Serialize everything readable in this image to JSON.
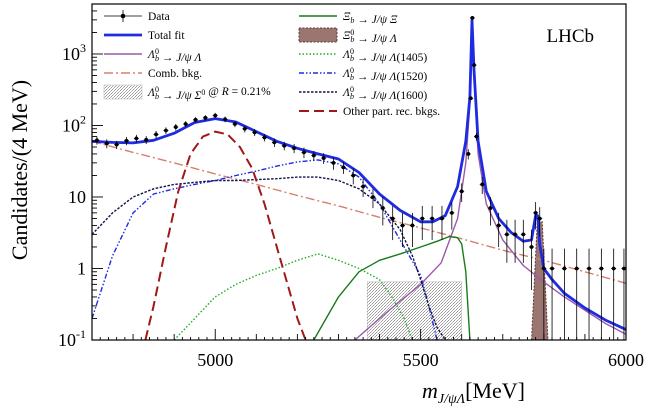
{
  "chart_data": {
    "type": "line",
    "experiment_label": "LHCb",
    "xlabel": "m_{J/ψΛ}[MeV]",
    "ylabel": "Candidates/(4 MeV)",
    "xlim": [
      4700,
      6000
    ],
    "ylim": [
      0.1,
      5000
    ],
    "yscale": "log",
    "grid": false,
    "legend_position": "top",
    "x_ticks": [
      5000,
      5500,
      6000
    ],
    "x_tick_labels": [
      "5000",
      "5500",
      "6000"
    ],
    "y_ticks": [
      0.1,
      1,
      10,
      100,
      1000
    ],
    "y_tick_labels": [
      "10^{-1}",
      "1",
      "10",
      "10^{2}",
      "10^{3}"
    ],
    "legend": [
      {
        "label": "Data",
        "style": "data",
        "color": "#000000"
      },
      {
        "label": "Total fit",
        "style": "solid",
        "color": "#1f2be0"
      },
      {
        "label": "Λb0 → J/ψ Λ",
        "style": "solid",
        "color": "#9a5aa8"
      },
      {
        "label": "Comb. bkg.",
        "style": "dashdot",
        "color": "#d4826c"
      },
      {
        "label": "Λb0 → J/ψ Σ0 @ R = 0.21%",
        "style": "hatch",
        "color": "#a8a8a8"
      },
      {
        "label": "Ξb → J/ψ Ξ",
        "style": "solid",
        "color": "#1a7a1a"
      },
      {
        "label": "Ξb0 → J/ψ Λ",
        "style": "fill",
        "color": "#9b7570"
      },
      {
        "label": "Λb0 → J/ψ Λ(1405)",
        "style": "dotted",
        "color": "#22aa22"
      },
      {
        "label": "Λb0 → J/ψ Λ(1520)",
        "style": "dashdotdot",
        "color": "#1f2be0"
      },
      {
        "label": "Λb0 → J/ψ Λ(1600)",
        "style": "dotdense",
        "color": "#10104a"
      },
      {
        "label": "Other part. rec. bkgs.",
        "style": "dashed",
        "color": "#a01818"
      }
    ],
    "series": [
      {
        "name": "Total fit",
        "color": "#1f2be0",
        "x": [
          4700,
          4750,
          4800,
          4850,
          4900,
          4950,
          5000,
          5050,
          5100,
          5150,
          5200,
          5250,
          5300,
          5350,
          5400,
          5450,
          5500,
          5530,
          5560,
          5590,
          5610,
          5620,
          5625,
          5630,
          5640,
          5660,
          5690,
          5720,
          5750,
          5770,
          5780,
          5785,
          5790,
          5800,
          5820,
          5850,
          5900,
          5950,
          6000
        ],
        "y": [
          60,
          58,
          57,
          62,
          78,
          110,
          125,
          112,
          82,
          60,
          48,
          40,
          34,
          22,
          11,
          6.5,
          4.5,
          4.5,
          5.5,
          14,
          60,
          250,
          3000,
          600,
          60,
          12,
          5,
          3.2,
          2.4,
          2.5,
          5.5,
          5.5,
          2.2,
          1.0,
          0.7,
          0.45,
          0.28,
          0.19,
          0.14
        ]
      },
      {
        "name": "Λb0 → J/ψ Λ",
        "color": "#9a5aa8",
        "x": [
          5340,
          5400,
          5450,
          5500,
          5550,
          5590,
          5610,
          5620,
          5625,
          5630,
          5640,
          5660,
          5700,
          5750,
          5800,
          5850,
          5900,
          5950,
          6000
        ],
        "y": [
          0.1,
          0.2,
          0.35,
          0.6,
          1.2,
          5,
          30,
          200,
          3000,
          500,
          40,
          8,
          2.5,
          1.1,
          0.65,
          0.4,
          0.26,
          0.17,
          0.12
        ]
      },
      {
        "name": "Comb. bkg.",
        "color": "#d4826c",
        "x": [
          4700,
          4800,
          4900,
          5000,
          5100,
          5200,
          5300,
          5400,
          5500,
          5600,
          5700,
          5800,
          5900,
          6000
        ],
        "y": [
          60,
          42,
          30,
          21,
          15,
          10.5,
          7.5,
          5.2,
          3.7,
          2.6,
          1.8,
          1.3,
          0.9,
          0.62
        ]
      },
      {
        "name": "Ξb → J/ψ Ξ",
        "color": "#1a7a1a",
        "x": [
          5240,
          5300,
          5350,
          5400,
          5450,
          5500,
          5540,
          5570,
          5590,
          5600,
          5610,
          5620
        ],
        "y": [
          0.1,
          0.4,
          0.9,
          1.3,
          1.6,
          2.0,
          2.4,
          2.8,
          2.7,
          2.2,
          0.9,
          0.1
        ]
      },
      {
        "name": "Λb0 → J/ψ Λ(1405)",
        "color": "#22aa22",
        "x": [
          4900,
          4950,
          5000,
          5050,
          5100,
          5150,
          5200,
          5250,
          5300,
          5350,
          5400,
          5430,
          5460,
          5480
        ],
        "y": [
          0.1,
          0.2,
          0.4,
          0.6,
          0.8,
          1.0,
          1.3,
          1.6,
          1.3,
          1.0,
          0.7,
          0.4,
          0.2,
          0.1
        ]
      },
      {
        "name": "Λb0 → J/ψ Λ(1520)",
        "color": "#1f2be0",
        "x": [
          4700,
          4750,
          4800,
          4850,
          4900,
          4950,
          5000,
          5050,
          5100,
          5150,
          5200,
          5250,
          5300,
          5350,
          5400,
          5450,
          5500,
          5520,
          5540
        ],
        "y": [
          0.2,
          1.5,
          6,
          11,
          13,
          15,
          17,
          20,
          23,
          27,
          31,
          33,
          29,
          19,
          8,
          2.5,
          0.8,
          0.3,
          0.1
        ]
      },
      {
        "name": "Λb0 → J/ψ Λ(1600)",
        "color": "#10104a",
        "x": [
          4700,
          4750,
          4800,
          4850,
          4900,
          4950,
          5000,
          5050,
          5100,
          5150,
          5200,
          5250,
          5300,
          5350,
          5400,
          5450,
          5480,
          5500,
          5520,
          5540,
          5560
        ],
        "y": [
          3,
          6,
          10,
          13,
          15,
          16,
          17,
          17,
          17.5,
          18,
          19,
          19,
          17,
          13,
          8,
          3.5,
          1.5,
          0.7,
          0.3,
          0.15,
          0.1
        ]
      },
      {
        "name": "Other part. rec. bkgs.",
        "color": "#a01818",
        "x": [
          4830,
          4850,
          4880,
          4910,
          4940,
          4970,
          5000,
          5030,
          5060,
          5090,
          5120,
          5150,
          5180,
          5200,
          5220
        ],
        "y": [
          0.1,
          0.3,
          2,
          12,
          40,
          70,
          82,
          75,
          50,
          25,
          8,
          2,
          0.5,
          0.2,
          0.1
        ]
      }
    ],
    "sigma0_band": {
      "x_min": 5370,
      "x_max": 5600,
      "y_max": 0.65
    },
    "xib0_peak": {
      "x_min": 5770,
      "x_max": 5810,
      "y_max": 4.5
    },
    "data_points": {
      "x": [
        4712,
        4736,
        4760,
        4784,
        4808,
        4832,
        4856,
        4880,
        4904,
        4928,
        4952,
        4976,
        5000,
        5024,
        5048,
        5072,
        5096,
        5120,
        5144,
        5168,
        5192,
        5216,
        5240,
        5264,
        5288,
        5312,
        5336,
        5360,
        5384,
        5408,
        5432,
        5456,
        5480,
        5504,
        5528,
        5552,
        5576,
        5600,
        5616,
        5622,
        5626,
        5630,
        5636,
        5650,
        5670,
        5690,
        5710,
        5730,
        5750,
        5770,
        5780,
        5790,
        5800,
        5820,
        5850,
        5880,
        5910,
        5940,
        5970,
        5995
      ],
      "y": [
        62,
        56,
        54,
        61,
        66,
        63,
        75,
        85,
        95,
        105,
        120,
        128,
        138,
        122,
        105,
        90,
        80,
        68,
        58,
        52,
        48,
        42,
        38,
        35,
        30,
        26,
        20,
        14,
        10,
        7,
        5,
        4,
        4,
        5,
        5,
        5,
        6,
        12,
        40,
        240,
        3200,
        700,
        70,
        15,
        7,
        4,
        3,
        3,
        3,
        2,
        6,
        5,
        1,
        1,
        1,
        1,
        1,
        1,
        1,
        1
      ],
      "err": [
        8,
        8,
        7,
        8,
        8,
        8,
        9,
        9,
        10,
        10,
        11,
        11,
        12,
        11,
        10,
        10,
        9,
        8,
        8,
        7,
        7,
        7,
        6,
        6,
        6,
        5,
        5,
        4,
        3,
        3,
        2.5,
        2,
        2,
        2.5,
        2.5,
        2.5,
        2.5,
        3.5,
        6.5,
        15,
        57,
        26,
        8.5,
        4,
        3,
        2,
        1.8,
        1.8,
        1.8,
        1.5,
        2.5,
        2.2,
        0.9,
        0.9,
        0.9,
        0.9,
        0.9,
        0.9,
        0.9,
        0.9
      ]
    }
  }
}
